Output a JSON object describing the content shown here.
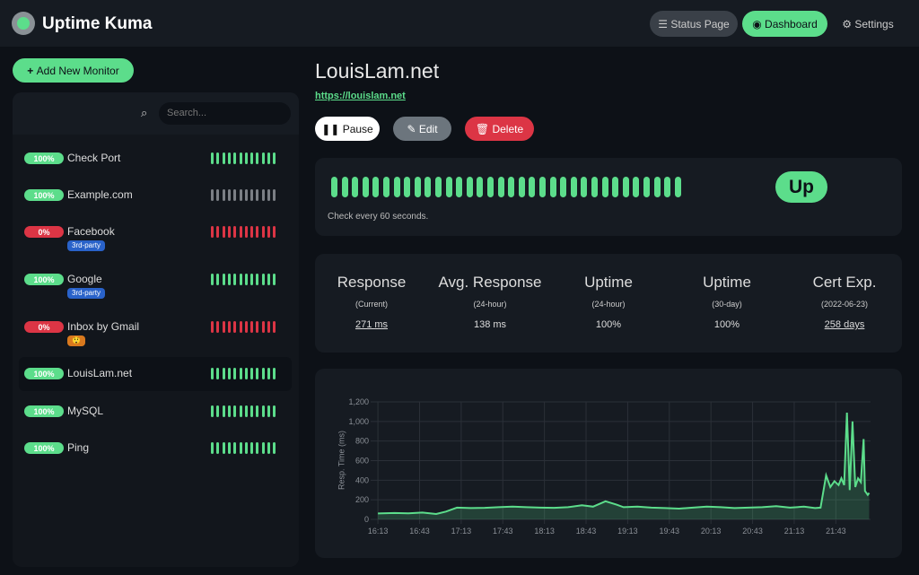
{
  "header": {
    "brand": "Uptime Kuma",
    "nav": [
      "Status Page",
      "Dashboard",
      "Settings"
    ]
  },
  "sidebar": {
    "add_button": "Add New Monitor",
    "search_placeholder": "Search...",
    "monitors": [
      {
        "name": "Check Port",
        "uptime": "100%",
        "color": "#5cdd8b"
      },
      {
        "name": "Example.com",
        "uptime": "100%",
        "color": "#7b7f85"
      },
      {
        "name": "Facebook",
        "uptime": "0%",
        "color": "#dc3545",
        "tag": "3rd-party",
        "tag_color": "#2962c9"
      },
      {
        "name": "Google",
        "uptime": "100%",
        "color": "#5cdd8b",
        "tag": "3rd-party",
        "tag_color": "#2962c9"
      },
      {
        "name": "Inbox by Gmail",
        "uptime": "0%",
        "color": "#dc3545",
        "tag": "😲",
        "tag_color": "#d9791e"
      },
      {
        "name": "LouisLam.net",
        "uptime": "100%",
        "color": "#5cdd8b",
        "selected": true
      },
      {
        "name": "MySQL",
        "uptime": "100%",
        "color": "#5cdd8b"
      },
      {
        "name": "Ping",
        "uptime": "100%",
        "color": "#5cdd8b"
      }
    ]
  },
  "detail": {
    "title": "LouisLam.net",
    "url": "https://louislam.net",
    "buttons": [
      "Pause",
      "Edit",
      "Delete"
    ],
    "status": "Up",
    "interval_note": "Check every 60 seconds.",
    "stats": [
      {
        "title": "Response",
        "sub": "(Current)",
        "value": "271 ms",
        "link": true
      },
      {
        "title": "Avg. Response",
        "sub": "(24-hour)",
        "value": "138 ms"
      },
      {
        "title": "Uptime",
        "sub": "(24-hour)",
        "value": "100%"
      },
      {
        "title": "Uptime",
        "sub": "(30-day)",
        "value": "100%"
      },
      {
        "title": "Cert Exp.",
        "sub": "(2022-06-23)",
        "value": "258 days",
        "link": true
      }
    ]
  },
  "chart_data": {
    "type": "line",
    "y_label": "Resp. Time (ms)",
    "color": "#5cdd8b",
    "grid": true,
    "xlim": [
      971,
      1328
    ],
    "xticks": [
      {
        "value": 973,
        "label": "16:13"
      },
      {
        "value": 1003,
        "label": "16:43"
      },
      {
        "value": 1033,
        "label": "17:13"
      },
      {
        "value": 1063,
        "label": "17:43"
      },
      {
        "value": 1093,
        "label": "18:13"
      },
      {
        "value": 1123,
        "label": "18:43"
      },
      {
        "value": 1153,
        "label": "19:13"
      },
      {
        "value": 1183,
        "label": "19:43"
      },
      {
        "value": 1213,
        "label": "20:13"
      },
      {
        "value": 1243,
        "label": "20:43"
      },
      {
        "value": 1273,
        "label": "21:13"
      },
      {
        "value": 1303,
        "label": "21:43"
      }
    ],
    "ylim": [
      0,
      1200
    ],
    "yticks": [
      0,
      200,
      400,
      600,
      800,
      {
        "value": 1000,
        "label": "1,000"
      },
      {
        "value": 1200,
        "label": "1,200"
      }
    ],
    "x": [
      973,
      985,
      995,
      1005,
      1015,
      1022,
      1030,
      1040,
      1050,
      1060,
      1070,
      1080,
      1090,
      1100,
      1110,
      1120,
      1128,
      1137,
      1145,
      1150,
      1160,
      1170,
      1180,
      1190,
      1200,
      1210,
      1220,
      1230,
      1240,
      1250,
      1260,
      1270,
      1280,
      1288,
      1292,
      1296,
      1299,
      1302,
      1305,
      1307,
      1309,
      1311,
      1313,
      1315,
      1317,
      1319,
      1321,
      1323,
      1324,
      1326,
      1327
    ],
    "values": [
      60,
      65,
      62,
      70,
      55,
      80,
      120,
      115,
      118,
      125,
      130,
      125,
      120,
      118,
      125,
      145,
      130,
      185,
      150,
      125,
      130,
      120,
      115,
      110,
      120,
      130,
      125,
      115,
      120,
      125,
      135,
      120,
      130,
      115,
      120,
      450,
      330,
      390,
      350,
      420,
      350,
      1090,
      300,
      1000,
      330,
      420,
      380,
      820,
      290,
      250,
      270
    ]
  }
}
